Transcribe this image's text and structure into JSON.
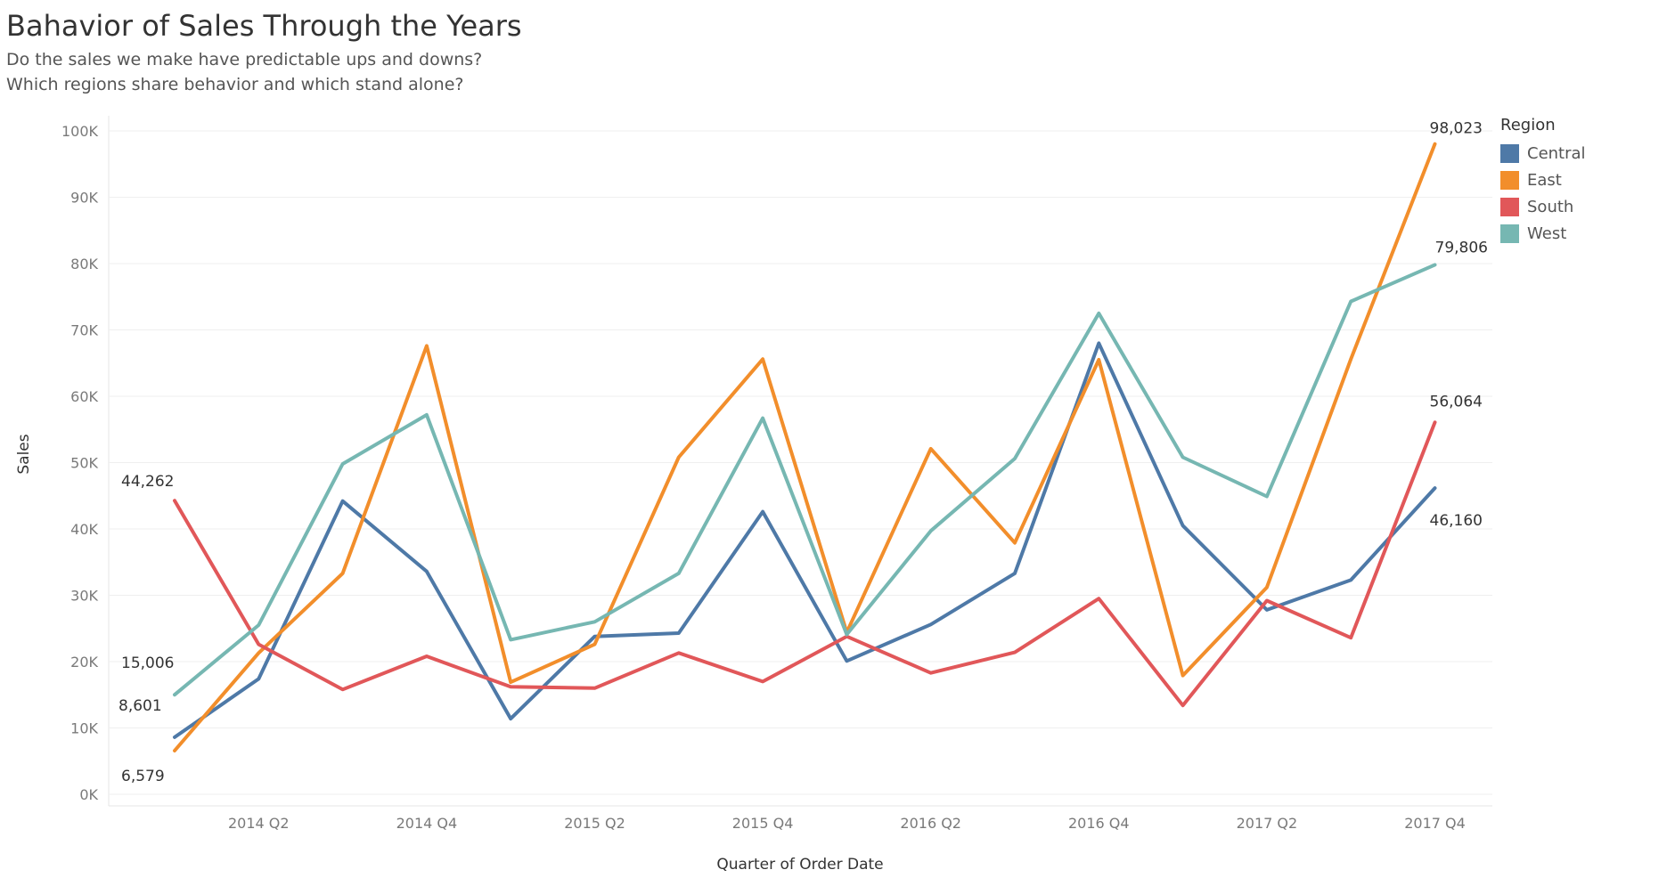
{
  "header": {
    "title": "Bahavior of Sales Through the Years",
    "subtitle_line1": "Do the sales we make have predictable ups and downs?",
    "subtitle_line2": "Which regions share behavior and which stand alone?"
  },
  "legend": {
    "title": "Region",
    "items": [
      {
        "label": "Central",
        "color": "#4e79a7"
      },
      {
        "label": "East",
        "color": "#f28e2b"
      },
      {
        "label": "South",
        "color": "#e15759"
      },
      {
        "label": "West",
        "color": "#76b7b2"
      }
    ]
  },
  "chart_data": {
    "type": "line",
    "title": "Bahavior of Sales Through the Years",
    "xlabel": "Quarter of Order Date",
    "ylabel": "Sales",
    "ylim": [
      0,
      100000
    ],
    "grid": true,
    "legend_position": "right",
    "y_ticks": [
      "0K",
      "10K",
      "20K",
      "30K",
      "40K",
      "50K",
      "60K",
      "70K",
      "80K",
      "90K",
      "100K"
    ],
    "x": [
      "2014 Q1",
      "2014 Q2",
      "2014 Q3",
      "2014 Q4",
      "2015 Q1",
      "2015 Q2",
      "2015 Q3",
      "2015 Q4",
      "2016 Q1",
      "2016 Q2",
      "2016 Q3",
      "2016 Q4",
      "2017 Q1",
      "2017 Q2",
      "2017 Q3",
      "2017 Q4"
    ],
    "x_tick_labels": [
      "2014 Q2",
      "2014 Q4",
      "2015 Q2",
      "2015 Q4",
      "2016 Q2",
      "2016 Q4",
      "2017 Q2",
      "2017 Q4"
    ],
    "series": [
      {
        "name": "Central",
        "color": "#4e79a7",
        "values": [
          8601,
          17400,
          44200,
          33600,
          11400,
          23800,
          24300,
          42600,
          20100,
          25600,
          33300,
          68000,
          40500,
          27800,
          32300,
          46160
        ]
      },
      {
        "name": "East",
        "color": "#f28e2b",
        "values": [
          6579,
          21300,
          33300,
          67600,
          16900,
          22600,
          50800,
          65600,
          24400,
          52100,
          37900,
          65500,
          17900,
          31200,
          65600,
          98023
        ]
      },
      {
        "name": "South",
        "color": "#e15759",
        "values": [
          44262,
          22600,
          15800,
          20800,
          16200,
          16000,
          21300,
          17000,
          23800,
          18300,
          21400,
          29500,
          13400,
          29200,
          23600,
          56064
        ]
      },
      {
        "name": "West",
        "color": "#76b7b2",
        "values": [
          15006,
          25500,
          49800,
          57200,
          23300,
          26000,
          33300,
          56700,
          24100,
          39700,
          50600,
          72500,
          50800,
          44900,
          74300,
          79806
        ]
      }
    ],
    "annotations": [
      {
        "text": "44,262",
        "series": "South",
        "index": 0
      },
      {
        "text": "15,006",
        "series": "West",
        "index": 0
      },
      {
        "text": "8,601",
        "series": "Central",
        "index": 0
      },
      {
        "text": "6,579",
        "series": "East",
        "index": 0
      },
      {
        "text": "98,023",
        "series": "East",
        "index": 15
      },
      {
        "text": "79,806",
        "series": "West",
        "index": 15
      },
      {
        "text": "56,064",
        "series": "South",
        "index": 15
      },
      {
        "text": "46,160",
        "series": "Central",
        "index": 15
      }
    ]
  }
}
